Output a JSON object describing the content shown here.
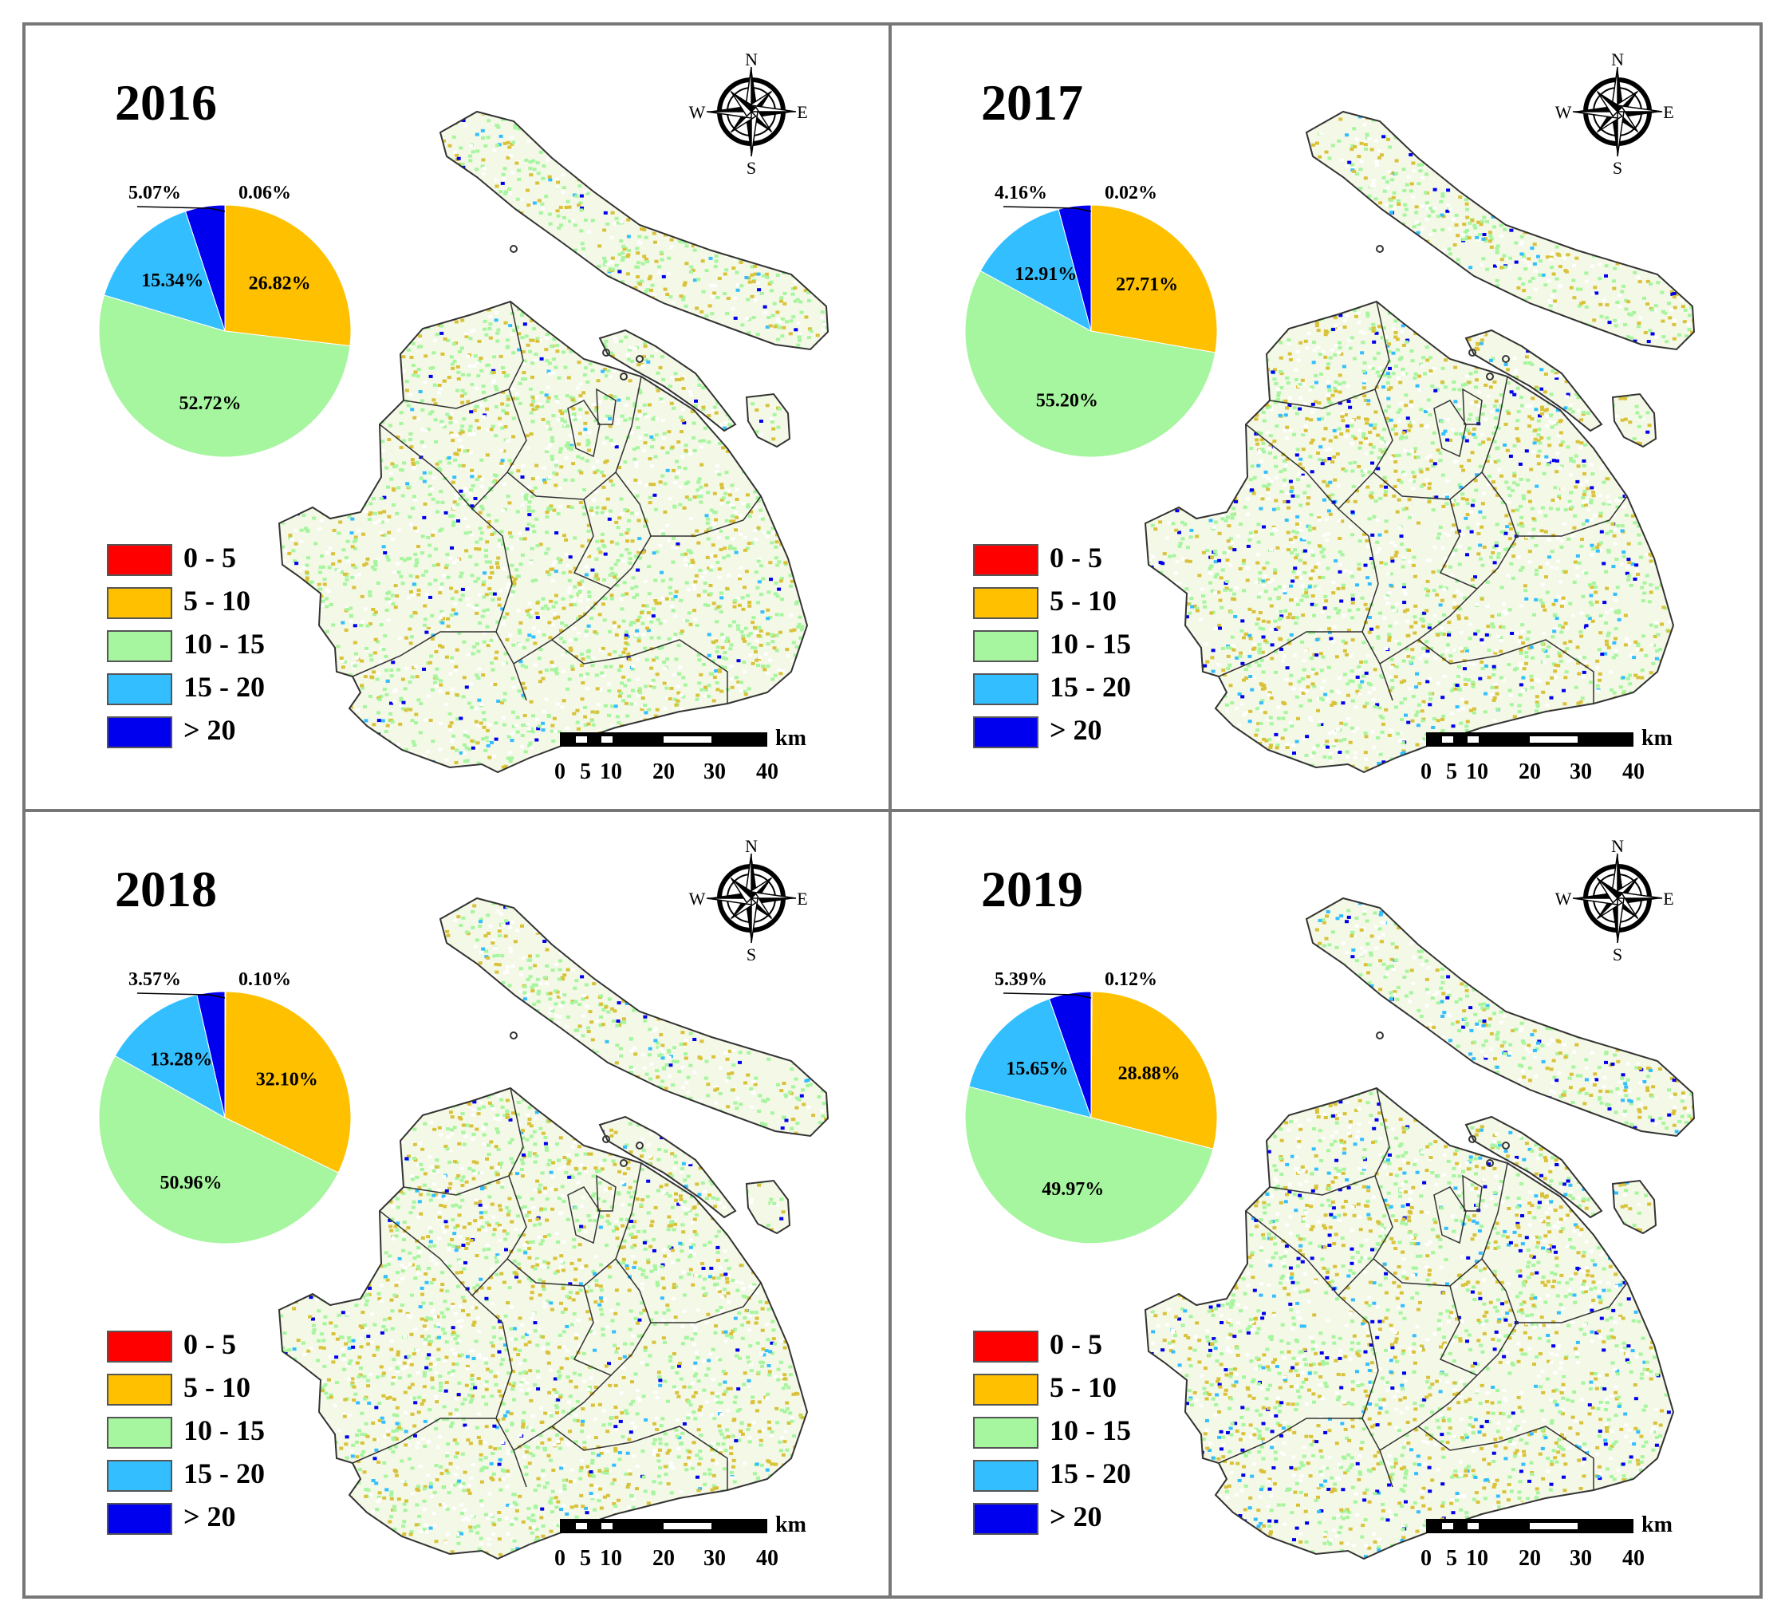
{
  "legend": {
    "items": [
      {
        "label": "0 - 5",
        "color": "#ff0000"
      },
      {
        "label": "5 - 10",
        "color": "#ffc000"
      },
      {
        "label": "10 - 15",
        "color": "#a6f59f"
      },
      {
        "label": "15 - 20",
        "color": "#33bfff"
      },
      {
        "label": "> 20",
        "color": "#0000ee"
      }
    ]
  },
  "compass": {
    "n": "N",
    "s": "S",
    "e": "E",
    "w": "W"
  },
  "scale_bar": {
    "unit": "km",
    "ticks": [
      "0",
      "5",
      "10",
      "20",
      "30",
      "40"
    ]
  },
  "chart_data": [
    {
      "type": "pie",
      "title": "2016",
      "categories": [
        "0 - 5",
        "5 - 10",
        "10 - 15",
        "15 - 20",
        "> 20"
      ],
      "values": [
        0.06,
        26.82,
        52.72,
        15.34,
        5.07
      ],
      "labels": [
        "0.06%",
        "26.82%",
        "52.72%",
        "15.34%",
        "5.07%"
      ]
    },
    {
      "type": "pie",
      "title": "2017",
      "categories": [
        "0 - 5",
        "5 - 10",
        "10 - 15",
        "15 - 20",
        "> 20"
      ],
      "values": [
        0.02,
        27.71,
        55.2,
        12.91,
        4.16
      ],
      "labels": [
        "0.02%",
        "27.71%",
        "55.20%",
        "12.91%",
        "4.16%"
      ]
    },
    {
      "type": "pie",
      "title": "2018",
      "categories": [
        "0 - 5",
        "5 - 10",
        "10 - 15",
        "15 - 20",
        "> 20"
      ],
      "values": [
        0.1,
        32.1,
        50.96,
        13.28,
        3.57
      ],
      "labels": [
        "0.10%",
        "32.10%",
        "50.96%",
        "13.28%",
        "3.57%"
      ]
    },
    {
      "type": "pie",
      "title": "2019",
      "categories": [
        "0 - 5",
        "5 - 10",
        "10 - 15",
        "15 - 20",
        "> 20"
      ],
      "values": [
        0.12,
        28.88,
        49.97,
        15.65,
        5.39
      ],
      "labels": [
        "0.12%",
        "28.88%",
        "49.97%",
        "15.65%",
        "5.39%"
      ]
    }
  ]
}
